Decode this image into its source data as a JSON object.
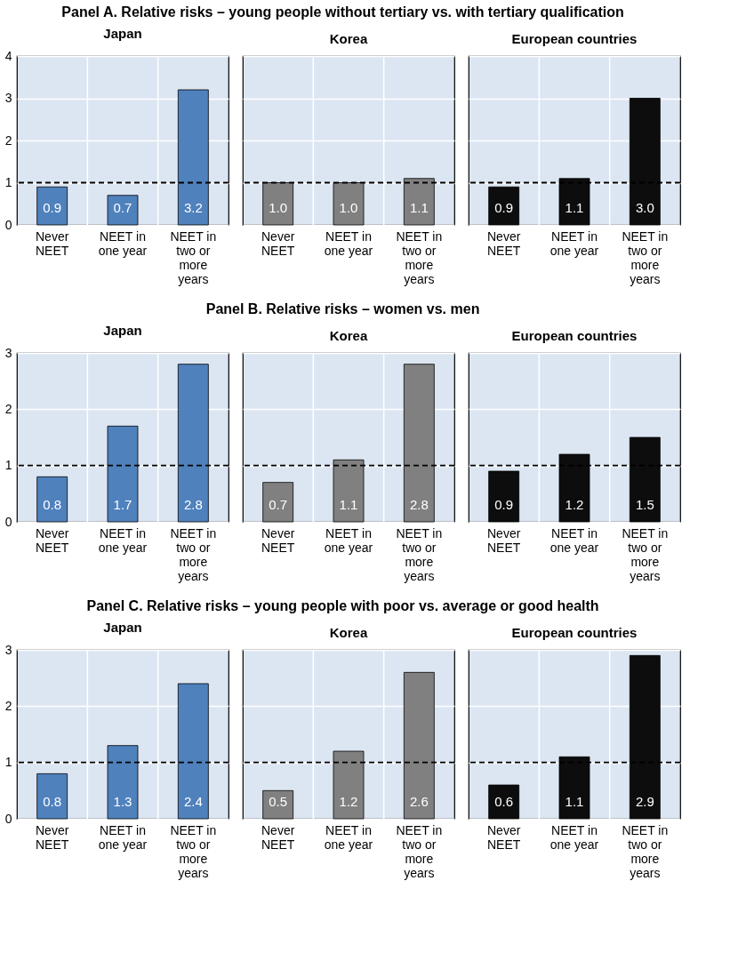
{
  "chart_data": [
    {
      "type": "bar",
      "annotations": [
        "Panel A. Relative risks – young people without tertiary vs. with tertiary qualification"
      ],
      "title": "Japan",
      "categories": [
        "Never NEET",
        "NEET in one year",
        "NEET in two or more years"
      ],
      "values": [
        0.9,
        0.7,
        3.2
      ],
      "value_labels": [
        "0.9",
        "0.7",
        "3.2"
      ],
      "color": "#4f81bd",
      "ylim": [
        0,
        4
      ],
      "yticks": [
        0,
        1,
        2,
        3,
        4
      ],
      "grid": true,
      "ref_lines": [
        {
          "axis": "y",
          "value": 1,
          "color": "#000000",
          "line_style": "dashed"
        }
      ]
    },
    {
      "type": "bar",
      "title": "Korea",
      "categories": [
        "Never NEET",
        "NEET in one year",
        "NEET in two or more years"
      ],
      "values": [
        1.0,
        1.0,
        1.1
      ],
      "value_labels": [
        "1.0",
        "1.0",
        "1.1"
      ],
      "color": "#808080",
      "ylim": [
        0,
        4
      ],
      "yticks": [
        0,
        1,
        2,
        3,
        4
      ],
      "grid": true,
      "tick_labels": "x",
      "ref_lines": [
        {
          "axis": "y",
          "value": 1,
          "color": "#000000",
          "line_style": "dashed"
        }
      ]
    },
    {
      "type": "bar",
      "title": "European countries",
      "categories": [
        "Never NEET",
        "NEET in one year",
        "NEET in two or more years"
      ],
      "values": [
        0.9,
        1.1,
        3.0
      ],
      "value_labels": [
        "0.9",
        "1.1",
        "3.0"
      ],
      "color": "#0d0d0d",
      "ylim": [
        0,
        4
      ],
      "yticks": [
        0,
        1,
        2,
        3,
        4
      ],
      "grid": true,
      "tick_labels": "x",
      "ref_lines": [
        {
          "axis": "y",
          "value": 1,
          "color": "#000000",
          "line_style": "dashed"
        }
      ]
    },
    {
      "type": "bar",
      "annotations": [
        "Panel B. Relative risks – women vs. men"
      ],
      "title": "Japan",
      "categories": [
        "Never NEET",
        "NEET in one year",
        "NEET in two or more years"
      ],
      "values": [
        0.8,
        1.7,
        2.8
      ],
      "value_labels": [
        "0.8",
        "1.7",
        "2.8"
      ],
      "color": "#4f81bd",
      "ylim": [
        0,
        3
      ],
      "yticks": [
        0,
        1,
        2,
        3
      ],
      "grid": true,
      "ref_lines": [
        {
          "axis": "y",
          "value": 1,
          "color": "#000000",
          "line_style": "dashed"
        }
      ]
    },
    {
      "type": "bar",
      "title": "Korea",
      "categories": [
        "Never NEET",
        "NEET in one year",
        "NEET in two or more years"
      ],
      "values": [
        0.7,
        1.1,
        2.8
      ],
      "value_labels": [
        "0.7",
        "1.1",
        "2.8"
      ],
      "color": "#808080",
      "ylim": [
        0,
        3
      ],
      "yticks": [
        0,
        1,
        2,
        3
      ],
      "grid": true,
      "tick_labels": "x",
      "ref_lines": [
        {
          "axis": "y",
          "value": 1,
          "color": "#000000",
          "line_style": "dashed"
        }
      ]
    },
    {
      "type": "bar",
      "title": "European countries",
      "categories": [
        "Never NEET",
        "NEET in one year",
        "NEET in two or more years"
      ],
      "values": [
        0.9,
        1.2,
        1.5
      ],
      "value_labels": [
        "0.9",
        "1.2",
        "1.5"
      ],
      "color": "#0d0d0d",
      "ylim": [
        0,
        3
      ],
      "yticks": [
        0,
        1,
        2,
        3
      ],
      "grid": true,
      "tick_labels": "x",
      "ref_lines": [
        {
          "axis": "y",
          "value": 1,
          "color": "#000000",
          "line_style": "dashed"
        }
      ]
    },
    {
      "type": "bar",
      "annotations": [
        "Panel C. Relative risks – young people with poor vs. average or good health"
      ],
      "title": "Japan",
      "categories": [
        "Never NEET",
        "NEET in one year",
        "NEET in two or more years"
      ],
      "values": [
        0.8,
        1.3,
        2.4
      ],
      "value_labels": [
        "0.8",
        "1.3",
        "2.4"
      ],
      "color": "#4f81bd",
      "ylim": [
        0,
        3
      ],
      "yticks": [
        0,
        1,
        2,
        3
      ],
      "grid": true,
      "ref_lines": [
        {
          "axis": "y",
          "value": 1,
          "color": "#000000",
          "line_style": "dashed"
        }
      ]
    },
    {
      "type": "bar",
      "title": "Korea",
      "categories": [
        "Never NEET",
        "NEET in one year",
        "NEET in two or more years"
      ],
      "values": [
        0.5,
        1.2,
        2.6
      ],
      "value_labels": [
        "0.5",
        "1.2",
        "2.6"
      ],
      "color": "#808080",
      "ylim": [
        0,
        3
      ],
      "yticks": [
        0,
        1,
        2,
        3
      ],
      "grid": true,
      "tick_labels": "x",
      "ref_lines": [
        {
          "axis": "y",
          "value": 1,
          "color": "#000000",
          "line_style": "dashed"
        }
      ]
    },
    {
      "type": "bar",
      "title": "European countries",
      "categories": [
        "Never NEET",
        "NEET in one year",
        "NEET in two or more years"
      ],
      "values": [
        0.6,
        1.1,
        2.9
      ],
      "value_labels": [
        "0.6",
        "1.1",
        "2.9"
      ],
      "color": "#0d0d0d",
      "ylim": [
        0,
        3
      ],
      "yticks": [
        0,
        1,
        2,
        3
      ],
      "grid": true,
      "tick_labels": "x",
      "ref_lines": [
        {
          "axis": "y",
          "value": 1,
          "color": "#000000",
          "line_style": "dashed"
        }
      ]
    }
  ]
}
